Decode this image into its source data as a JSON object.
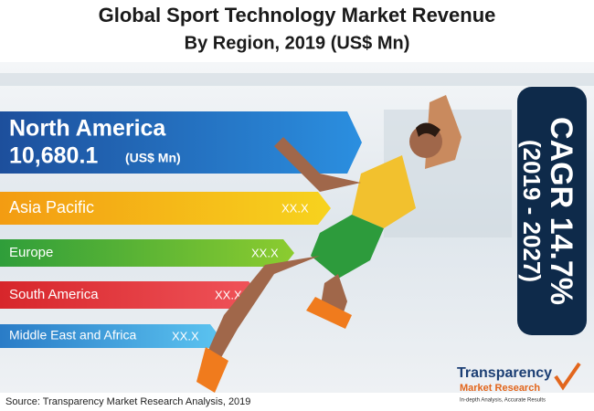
{
  "header": {
    "title": "Global Sport Technology Market Revenue",
    "subtitle": "By Region, 2019 (US$ Mn)"
  },
  "regions": [
    {
      "name": "North America",
      "value": "10,680.1",
      "unit": "(US$ Mn)"
    },
    {
      "name": "Asia Pacific",
      "value": "XX.X"
    },
    {
      "name": "Europe",
      "value": "XX.X"
    },
    {
      "name": "South America",
      "value": "XX.X"
    },
    {
      "name": "Middle East and Africa",
      "value": "XX.X"
    }
  ],
  "cagr": {
    "label": "CAGR 14.7%",
    "period": "(2019 - 2027)"
  },
  "logo": {
    "line1": "Transparency",
    "line2": "Market Research",
    "tagline": "In-depth Analysis, Accurate Results"
  },
  "source": "Source: Transparency Market Research Analysis, 2019"
}
